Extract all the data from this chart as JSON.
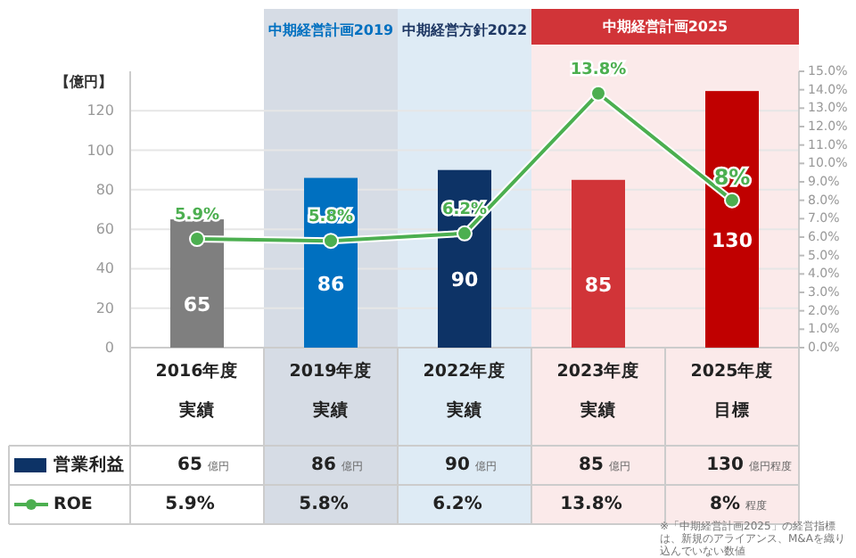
{
  "chart_data": {
    "type": "bar",
    "ylabel": "【億円】",
    "categories": [
      "2016年度実績",
      "2019年度実績",
      "2022年度実績",
      "2023年度実績",
      "2025年度目標"
    ],
    "series": [
      {
        "name": "営業利益",
        "color": "#0d3366",
        "colors": [
          "#7f7f7f",
          "#0070c0",
          "#0d3366",
          "#d13438",
          "#c00000"
        ],
        "values": [
          65,
          86,
          90,
          85,
          130
        ],
        "value_labels": [
          "65",
          "86",
          "90",
          "85",
          "130"
        ]
      },
      {
        "name": "ROE",
        "type": "line",
        "axis": "y2",
        "color": "#4caf50",
        "values": [
          5.9,
          5.8,
          6.2,
          13.8,
          8
        ],
        "value_labels": [
          "5.9%",
          "5.8%",
          "6.2%",
          "13.8%",
          "8%"
        ]
      }
    ],
    "ylim": [
      0,
      140
    ],
    "yticks": [
      0,
      20,
      40,
      60,
      80,
      100,
      120
    ],
    "y2lim": [
      0,
      15
    ],
    "y2ticks": [
      {
        "value": 0,
        "label": "0.0%"
      },
      {
        "value": 1,
        "label": "1.0%"
      },
      {
        "value": 2,
        "label": "2.0%"
      },
      {
        "value": 3,
        "label": "3.0%"
      },
      {
        "value": 4,
        "label": "4.0%"
      },
      {
        "value": 5,
        "label": "5.0%"
      },
      {
        "value": 6,
        "label": "6.0%"
      },
      {
        "value": 7,
        "label": "7.0%"
      },
      {
        "value": 8,
        "label": "8.0%"
      },
      {
        "value": 9,
        "label": "9.0%"
      },
      {
        "value": 10,
        "label": "10.0%"
      },
      {
        "value": 11,
        "label": "11.0%"
      },
      {
        "value": 12,
        "label": "12.0%"
      },
      {
        "value": 13,
        "label": "13.0%"
      },
      {
        "value": 14,
        "label": "14.0%"
      },
      {
        "value": 15,
        "label": "15.0%"
      }
    ],
    "bands": [
      {
        "axis": "x",
        "from": "2019年度実績",
        "to": "2019年度実績",
        "label": "中期経営計画2019",
        "color": "#d6dce5"
      },
      {
        "axis": "x",
        "from": "2022年度実績",
        "to": "2022年度実績",
        "label": "中期経営方針2022",
        "color": "#deebf5"
      },
      {
        "axis": "x",
        "from": "2023年度実績",
        "to": "2025年度目標",
        "label": "中期経営計画2025",
        "color": "#fbeaea"
      }
    ],
    "annotations": [
      "億円",
      "億円",
      "億円",
      "億円",
      "億円程度",
      "程度",
      "※「中期経営計画2025」の経営指標は、新規のアライアンス、M&Aを織り込んでいない数値"
    ],
    "grid": "y",
    "marker": "circle",
    "data_labels": true,
    "legend": "bottom left"
  }
}
